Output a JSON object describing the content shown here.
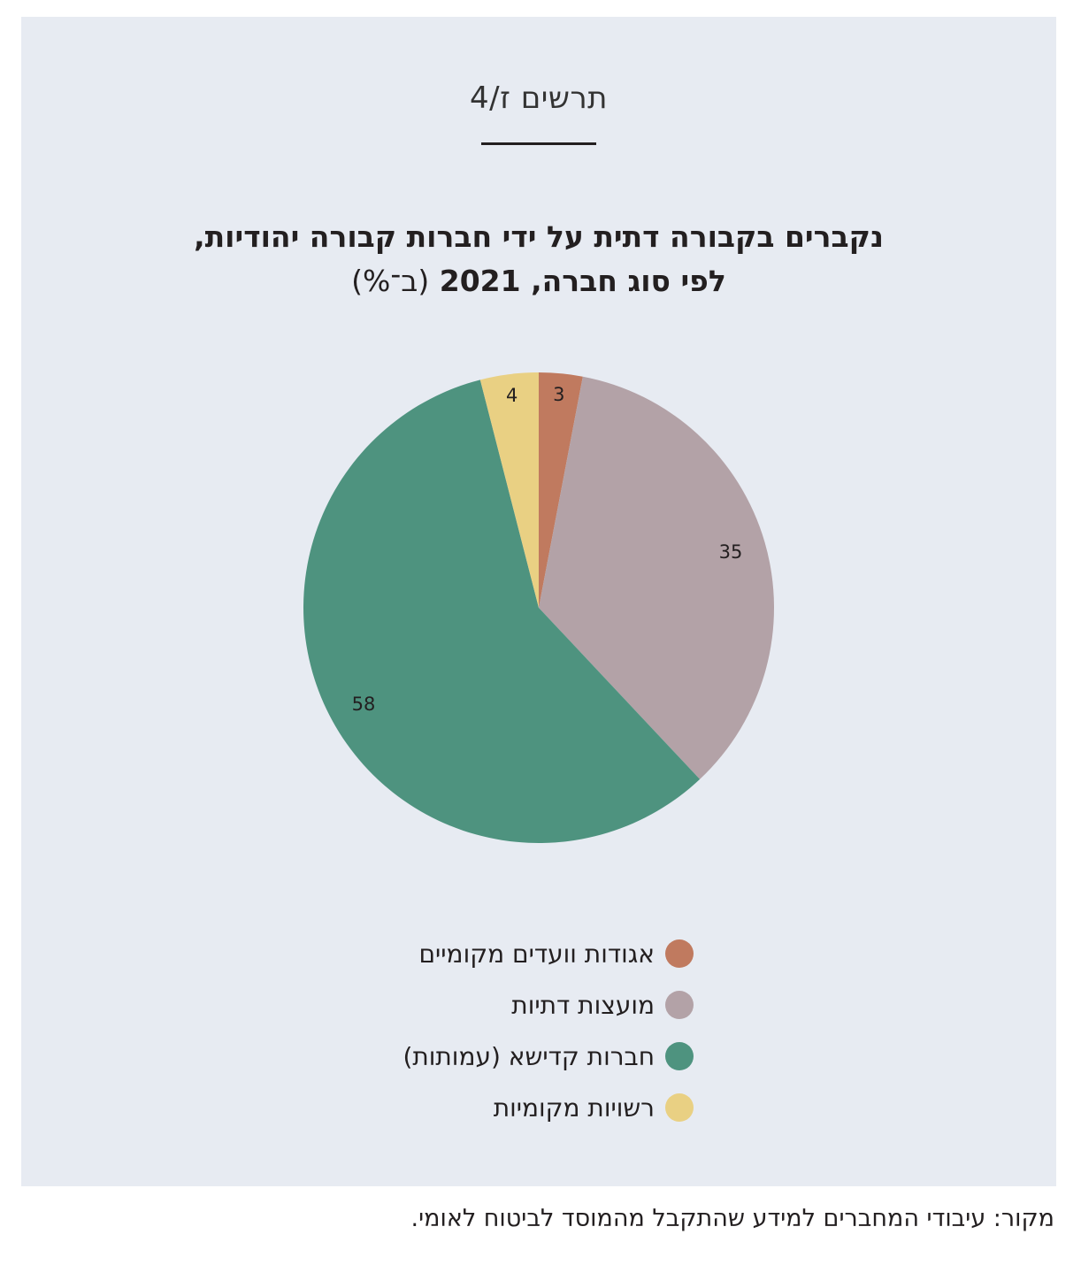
{
  "figure_label": "תרשים ז/4",
  "title_line1": "נקברים בקבורה דתית על ידי חברות קבורה יהודיות,",
  "title_line2": "לפי סוג חברה, 2021",
  "title_unit": "(ב־%)",
  "source": "מקור: עיבודי המחברים למידע שהתקבל מהמוסד לביטוח לאומי.",
  "chart_data": {
    "type": "pie",
    "title": "נקברים בקבורה דתית על ידי חברות קבורה יהודיות, לפי סוג חברה, 2021 (ב־%)",
    "start_angle": "12 o'clock",
    "direction": "clockwise",
    "legend_placement": "bottom",
    "slices": [
      {
        "label": "אגודות וועדים מקומיים",
        "value": 3,
        "color": "#c07a5f"
      },
      {
        "label": "מועצות דתיות",
        "value": 35,
        "color": "#b3a2a7"
      },
      {
        "label": "חברות קדישא (עמותות)",
        "value": 58,
        "color": "#4e937f"
      },
      {
        "label": "רשויות מקומיות",
        "value": 4,
        "color": "#e9d083"
      }
    ]
  }
}
